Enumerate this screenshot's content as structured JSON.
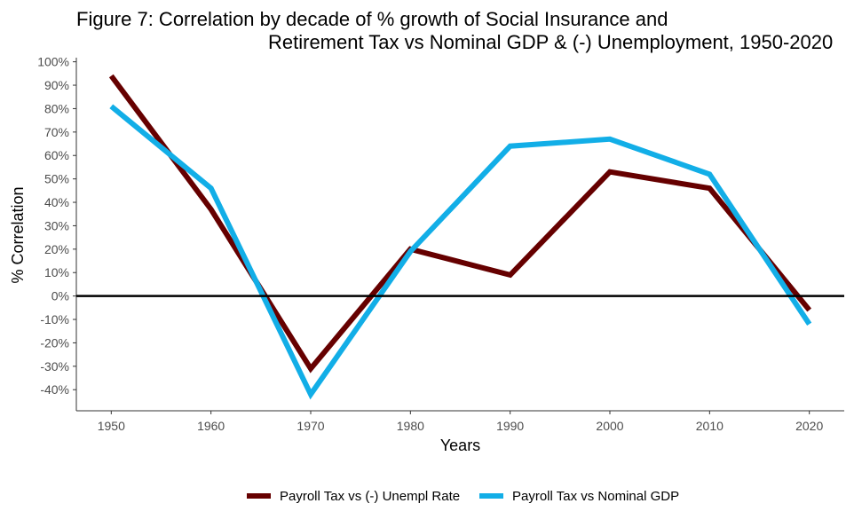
{
  "chart_data": {
    "type": "line",
    "title_lines": [
      "Figure 7: Correlation by decade of % growth of Social Insurance and",
      "Retirement Tax vs Nominal GDP & (-) Unemployment, 1950-2020"
    ],
    "xlabel": "Years",
    "ylabel": "% Correlation",
    "x": [
      1950,
      1960,
      1970,
      1980,
      1990,
      2000,
      2010,
      2020
    ],
    "x_ticks": [
      "1950",
      "1960",
      "1970",
      "1980",
      "1990",
      "2000",
      "2010",
      "2020"
    ],
    "xlim": [
      1946.5,
      2023.5
    ],
    "ylim": [
      -0.49,
      1.01
    ],
    "y_ticks": [
      1.0,
      0.9,
      0.8,
      0.7,
      0.6,
      0.5,
      0.4,
      0.3,
      0.2,
      0.1,
      0.0,
      -0.1,
      -0.2,
      -0.3,
      -0.4
    ],
    "y_tick_labels": [
      "100%",
      "90%",
      "80%",
      "70%",
      "60%",
      "50%",
      "40%",
      "30%",
      "20%",
      "10%",
      "0%",
      "-10%",
      "-20%",
      "-30%",
      "-40%"
    ],
    "reference_line_y": 0,
    "grid": false,
    "legend_position": "bottom",
    "series": [
      {
        "name": "Payroll Tax vs (-) Unempl Rate",
        "color": "#660000",
        "values": [
          0.94,
          0.37,
          -0.31,
          0.2,
          0.09,
          0.53,
          0.46,
          -0.06
        ]
      },
      {
        "name": "Payroll Tax vs Nominal GDP",
        "color": "#12aee7",
        "values": [
          0.81,
          0.46,
          -0.42,
          0.19,
          0.64,
          0.67,
          0.52,
          -0.12
        ]
      }
    ]
  }
}
